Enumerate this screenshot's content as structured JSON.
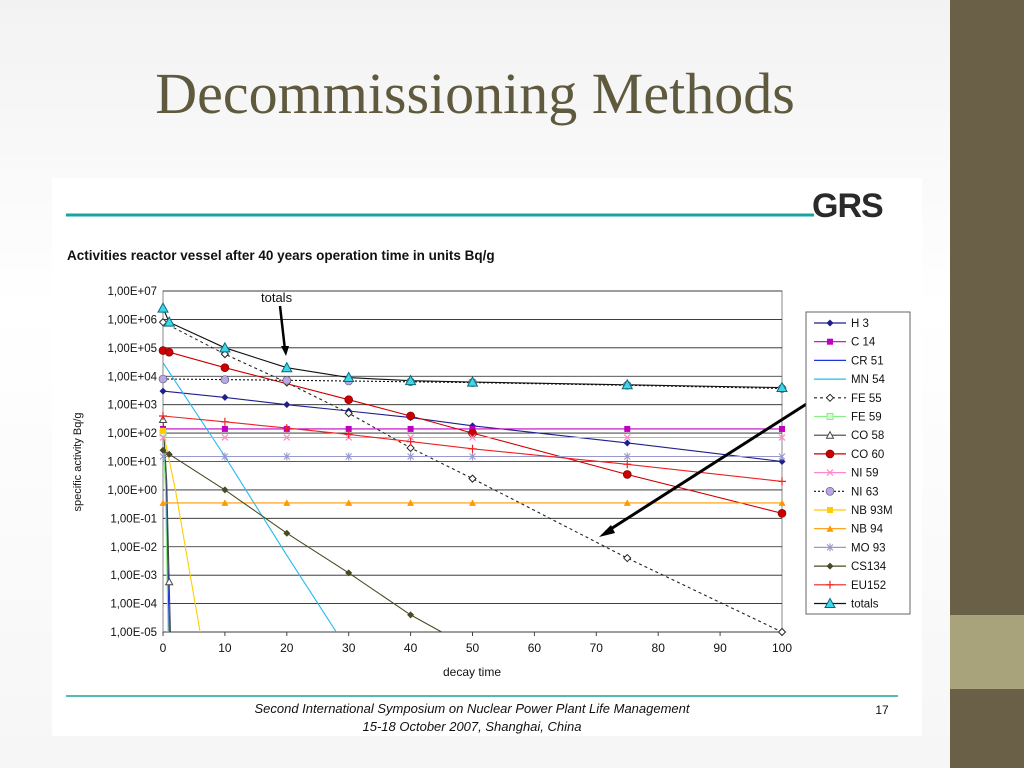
{
  "slide": {
    "title": "Decommissioning Methods"
  },
  "logo": {
    "text": "GRS"
  },
  "chart_data": {
    "type": "line",
    "title": "Activities reactor vessel after 40 years operation time in units Bq/g",
    "xlabel": "decay time",
    "ylabel": "specific activity Bq/g",
    "xlim": [
      0,
      100
    ],
    "ylim": [
      1e-05,
      10000000.0
    ],
    "log_y": true,
    "x_ticks": [
      "0",
      "10",
      "20",
      "30",
      "40",
      "50",
      "60",
      "70",
      "80",
      "90",
      "100"
    ],
    "y_ticks": [
      "1,00E-05",
      "1,00E-04",
      "1,00E-03",
      "1,00E-02",
      "1,00E-01",
      "1,00E+00",
      "1,00E+01",
      "1,00E+02",
      "1,00E+03",
      "1,00E+04",
      "1,00E+05",
      "1,00E+06",
      "1,00E+07"
    ],
    "legend_position": "right",
    "annotation": "totals",
    "series": [
      {
        "name": "H   3",
        "color": "#1f1f8c",
        "dash": "",
        "marker": "diamond",
        "markers": [
          0,
          10,
          20,
          30,
          40,
          50,
          75,
          100
        ],
        "x": [
          0,
          10,
          20,
          30,
          40,
          50,
          75,
          100
        ],
        "y": [
          3000,
          1800,
          1000,
          600,
          350,
          180,
          45,
          10
        ]
      },
      {
        "name": "C  14",
        "color": "#c000c0",
        "dash": "",
        "marker": "square",
        "markers": [
          0,
          10,
          20,
          30,
          40,
          50,
          75,
          100
        ],
        "x": [
          0,
          100
        ],
        "y": [
          140,
          140
        ]
      },
      {
        "name": "CR 51",
        "color": "#2233dd",
        "dash": "",
        "marker": "dash",
        "markers": [],
        "x": [
          0,
          0.5,
          1
        ],
        "y": [
          90,
          1,
          1e-05
        ]
      },
      {
        "name": "MN 54",
        "color": "#22bbee",
        "dash": "",
        "marker": "dash",
        "markers": [],
        "x": [
          0,
          10,
          20,
          28
        ],
        "y": [
          30000,
          15,
          0.005,
          1e-05
        ]
      },
      {
        "name": "FE 55",
        "color": "#222222",
        "dash": "3,3",
        "marker": "diamond_open",
        "markers": [
          0,
          10,
          20,
          30,
          40,
          50,
          75,
          100
        ],
        "x": [
          0,
          10,
          20,
          30,
          40,
          50,
          75,
          100
        ],
        "y": [
          800000,
          60000,
          6000,
          500,
          30,
          2.5,
          0.004,
          1e-05
        ]
      },
      {
        "name": "FE 59",
        "color": "#88ee88",
        "dash": "",
        "marker": "square_open",
        "markers": [
          0
        ],
        "x": [
          0,
          0.4,
          0.8
        ],
        "y": [
          100,
          1,
          1e-05
        ]
      },
      {
        "name": "CO 58",
        "color": "#444444",
        "dash": "",
        "marker": "triangle_open",
        "markers": [
          0,
          1
        ],
        "x": [
          0,
          0.6,
          1.2
        ],
        "y": [
          300,
          2,
          1e-05
        ]
      },
      {
        "name": "CO 60",
        "color": "#cc0000",
        "dash": "",
        "marker": "circle",
        "markers": [
          0,
          1,
          10,
          30,
          40,
          50,
          75,
          100
        ],
        "x": [
          0,
          1,
          10,
          30,
          40,
          50,
          75,
          100
        ],
        "y": [
          80000,
          70000,
          20000,
          1500,
          400,
          100,
          3.5,
          0.15
        ]
      },
      {
        "name": "NI 59",
        "color": "#ff88cc",
        "dash": "",
        "marker": "x",
        "markers": [
          0,
          10,
          20,
          30,
          40,
          50,
          75,
          100
        ],
        "x": [
          0,
          100
        ],
        "y": [
          70,
          70
        ]
      },
      {
        "name": "NI 63",
        "color": "#111111",
        "dash": "2,2",
        "marker": "circle_lav",
        "markers": [
          0,
          10,
          20,
          30,
          40,
          50,
          75,
          100
        ],
        "x": [
          0,
          10,
          20,
          30,
          40,
          50,
          75,
          100
        ],
        "y": [
          8000,
          7600,
          7200,
          6800,
          6400,
          6000,
          4800,
          3700
        ]
      },
      {
        "name": "NB 93M",
        "color": "#ffcc00",
        "dash": "",
        "marker": "square",
        "markers": [
          0
        ],
        "x": [
          0,
          2,
          6
        ],
        "y": [
          120,
          1,
          1e-05
        ]
      },
      {
        "name": "NB 94",
        "color": "#ff9900",
        "dash": "",
        "marker": "triangle",
        "markers": [
          0,
          10,
          20,
          30,
          40,
          50,
          75,
          100
        ],
        "x": [
          0,
          100
        ],
        "y": [
          0.35,
          0.35
        ]
      },
      {
        "name": "MO 93",
        "color": "#9999cc",
        "dash": "",
        "marker": "star",
        "markers": [
          0,
          10,
          20,
          30,
          40,
          50,
          75,
          100
        ],
        "x": [
          0,
          100
        ],
        "y": [
          15,
          15
        ]
      },
      {
        "name": "CS134",
        "color": "#4a4a22",
        "dash": "",
        "marker": "diamond",
        "markers": [
          0,
          1,
          10,
          20,
          30,
          40
        ],
        "x": [
          0,
          1,
          10,
          20,
          30,
          40,
          45
        ],
        "y": [
          25,
          18,
          1,
          0.03,
          0.0012,
          4e-05,
          1e-05
        ]
      },
      {
        "name": "EU152",
        "color": "#ee2222",
        "dash": "",
        "marker": "plus",
        "markers": [
          0,
          10,
          20,
          30,
          40,
          50,
          75,
          100
        ],
        "x": [
          0,
          10,
          20,
          30,
          40,
          50,
          75,
          100
        ],
        "y": [
          400,
          250,
          150,
          90,
          50,
          28,
          8,
          2
        ]
      },
      {
        "name": "totals",
        "color": "#111111",
        "dash": "",
        "marker": "triangle_cyan",
        "markers": [
          0,
          1,
          10,
          20,
          30,
          40,
          50,
          75,
          100
        ],
        "x": [
          0,
          1,
          10,
          20,
          30,
          40,
          50,
          75,
          100
        ],
        "y": [
          2500000,
          800000,
          100000,
          20000,
          9000,
          7000,
          6200,
          5000,
          4000
        ]
      }
    ]
  },
  "footer": {
    "line1": "Second International Symposium on Nuclear Power Plant Life Management",
    "line2": "15-18 October 2007, Shanghai, China",
    "page": "17"
  }
}
